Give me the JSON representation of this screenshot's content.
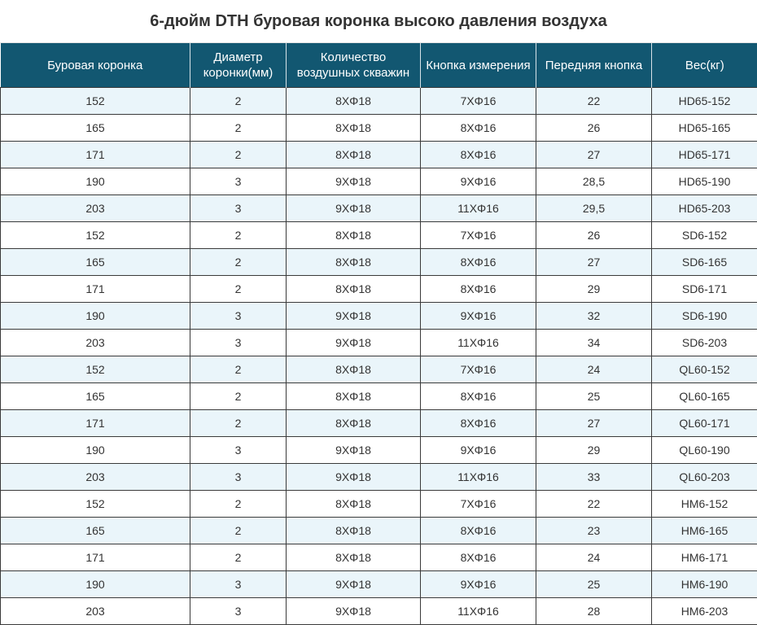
{
  "title": "6-дюйм DTH буровая коронка высоко давления воздуха",
  "table": {
    "headers": [
      "Буровая коронка",
      "Диаметр коронки(мм)",
      "Количество воздушных скважин",
      "Кнопка измерения",
      "Передняя кнопка",
      "Вес(кг)"
    ],
    "rows": [
      [
        "152",
        "2",
        "8XΦ18",
        "7XΦ16",
        "22",
        "HD65-152"
      ],
      [
        "165",
        "2",
        "8XΦ18",
        "8XΦ16",
        "26",
        "HD65-165"
      ],
      [
        "171",
        "2",
        "8XΦ18",
        "8XΦ16",
        "27",
        "HD65-171"
      ],
      [
        "190",
        "3",
        "9XΦ18",
        "9XΦ16",
        "28,5",
        "HD65-190"
      ],
      [
        "203",
        "3",
        "9XΦ18",
        "11XΦ16",
        "29,5",
        "HD65-203"
      ],
      [
        "152",
        "2",
        "8XΦ18",
        "7XΦ16",
        "26",
        "SD6-152"
      ],
      [
        "165",
        "2",
        "8XΦ18",
        "8XΦ16",
        "27",
        "SD6-165"
      ],
      [
        "171",
        "2",
        "8XΦ18",
        "8XΦ16",
        "29",
        "SD6-171"
      ],
      [
        "190",
        "3",
        "9XΦ18",
        "9XΦ16",
        "32",
        "SD6-190"
      ],
      [
        "203",
        "3",
        "9XΦ18",
        "11XΦ16",
        "34",
        "SD6-203"
      ],
      [
        "152",
        "2",
        "8XΦ18",
        "7XΦ16",
        "24",
        "QL60-152"
      ],
      [
        "165",
        "2",
        "8XΦ18",
        "8XΦ16",
        "25",
        "QL60-165"
      ],
      [
        "171",
        "2",
        "8XΦ18",
        "8XΦ16",
        "27",
        "QL60-171"
      ],
      [
        "190",
        "3",
        "9XΦ18",
        "9XΦ16",
        "29",
        "QL60-190"
      ],
      [
        "203",
        "3",
        "9XΦ18",
        "11XΦ16",
        "33",
        "QL60-203"
      ],
      [
        "152",
        "2",
        "8XΦ18",
        "7XΦ16",
        "22",
        "HM6-152"
      ],
      [
        "165",
        "2",
        "8XΦ18",
        "8XΦ16",
        "23",
        "HM6-165"
      ],
      [
        "171",
        "2",
        "8XΦ18",
        "8XΦ16",
        "24",
        "HM6-171"
      ],
      [
        "190",
        "3",
        "9XΦ18",
        "9XΦ16",
        "25",
        "HM6-190"
      ],
      [
        "203",
        "3",
        "9XΦ18",
        "11XΦ16",
        "28",
        "HM6-203"
      ]
    ]
  },
  "colors": {
    "header_background": "#125771",
    "header_text": "#ffffff",
    "row_stripe": "#eaf5fa",
    "row_plain": "#ffffff"
  }
}
